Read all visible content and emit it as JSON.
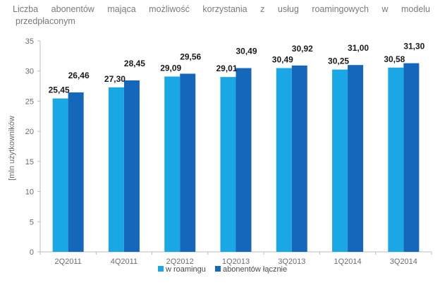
{
  "chart_data": {
    "type": "bar",
    "title_line1": "Liczba abonentów mająca możliwość korzystania z usług roamingowych w modelu",
    "title_line2": "przedpłaconym",
    "ylabel": "[mln użytkowników",
    "xlabel": "",
    "ylim": [
      0,
      35
    ],
    "yticks": [
      0,
      5,
      10,
      15,
      20,
      25,
      30,
      35
    ],
    "grid": false,
    "legend_position": "bottom",
    "categories": [
      "2Q2011",
      "4Q2011",
      "2Q2012",
      "1Q2013",
      "3Q2013",
      "1Q2014",
      "3Q2014"
    ],
    "series": [
      {
        "name": "w roamingu",
        "color": "#1aa7e6",
        "values": [
          25.45,
          27.3,
          29.09,
          29.01,
          30.49,
          30.25,
          30.58
        ],
        "labels": [
          "25,45",
          "27,30",
          "29,09",
          "29,01",
          "30,49",
          "30,25",
          "30,58"
        ]
      },
      {
        "name": "abonentów łącznie",
        "color": "#1467ba",
        "values": [
          26.46,
          28.45,
          29.56,
          30.49,
          30.92,
          31.0,
          31.3
        ],
        "labels": [
          "26,46",
          "28,45",
          "29,56",
          "30,49",
          "30,92",
          "31,00",
          "31,30"
        ]
      }
    ]
  }
}
